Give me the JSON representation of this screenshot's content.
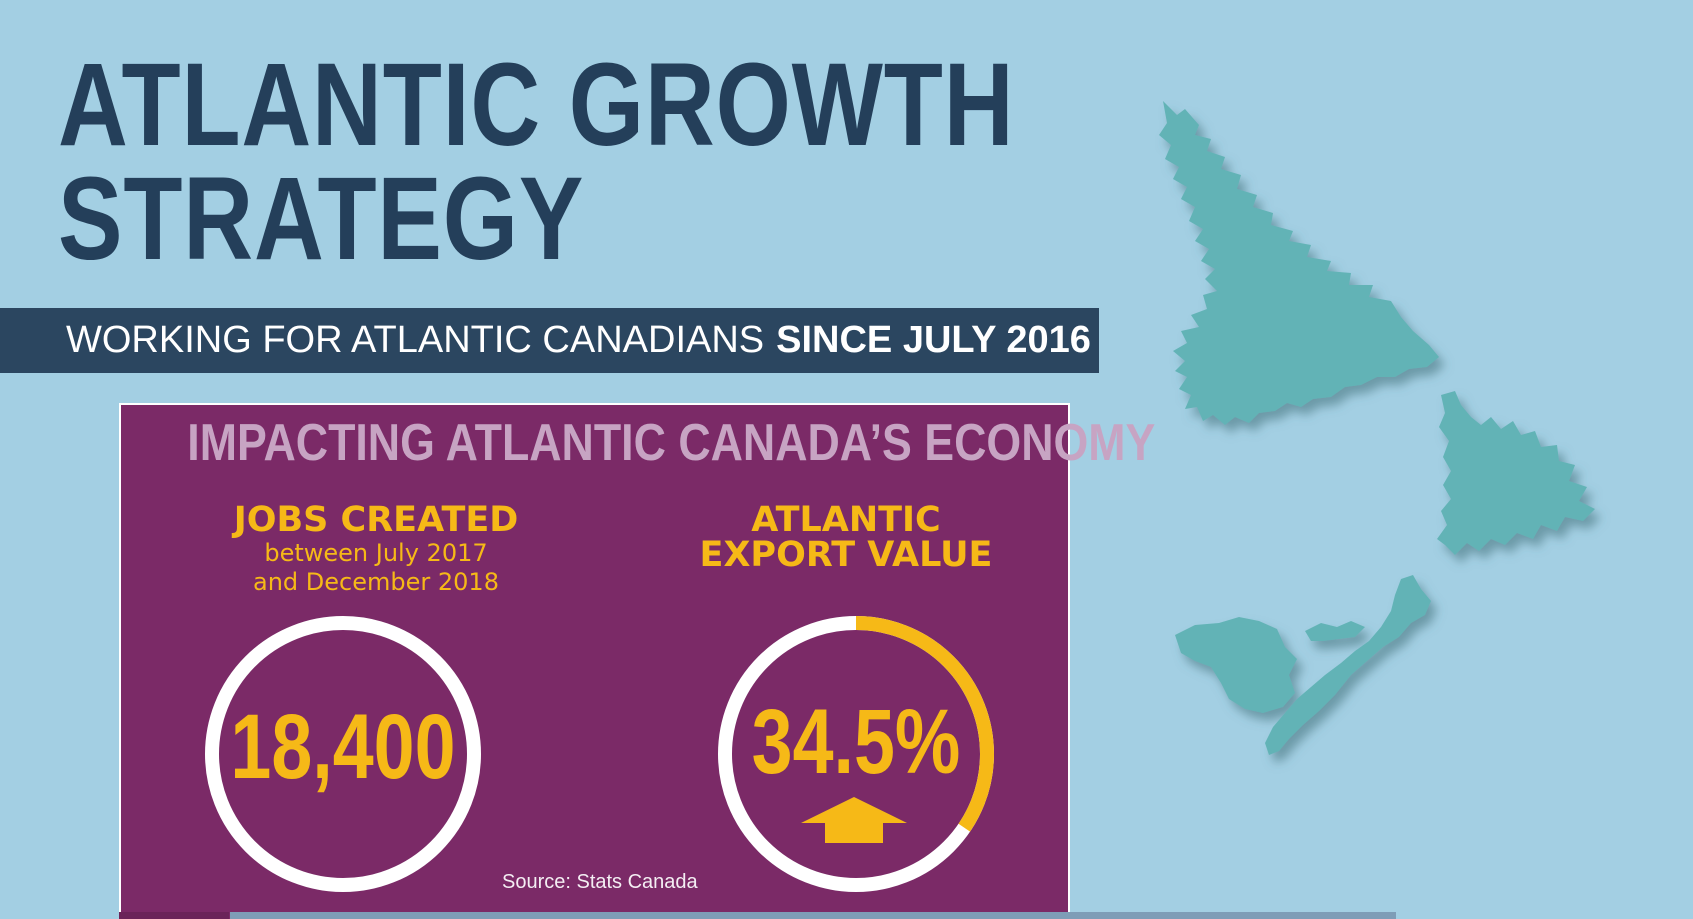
{
  "title": {
    "line1": "ATLANTIC GROWTH",
    "line2": "STRATEGY"
  },
  "banner": {
    "normal": "WORKING FOR ATLANTIC CANADIANS",
    "bold": "SINCE JULY 2016"
  },
  "panel": {
    "title": "IMPACTING ATLANTIC CANADA’S ECONOMY",
    "jobs": {
      "heading": "JOBS CREATED",
      "sub_line1": "between July 2017",
      "sub_line2": "and December 2018",
      "value": "18,400"
    },
    "exports": {
      "heading_line1": "ATLANTIC",
      "heading_line2": "EXPORT VALUE",
      "value": "34.5%",
      "ring_fill_fraction": 0.345
    },
    "source": "Source: Stats Canada"
  },
  "colors": {
    "background": "#a3cfe3",
    "title": "#243f5a",
    "panel": "#7b2a67",
    "accent": "#f6b917",
    "map": "#62b3b6"
  },
  "icons": {
    "arrow": "up-arrow-icon",
    "map": "atlantic-provinces-map"
  }
}
